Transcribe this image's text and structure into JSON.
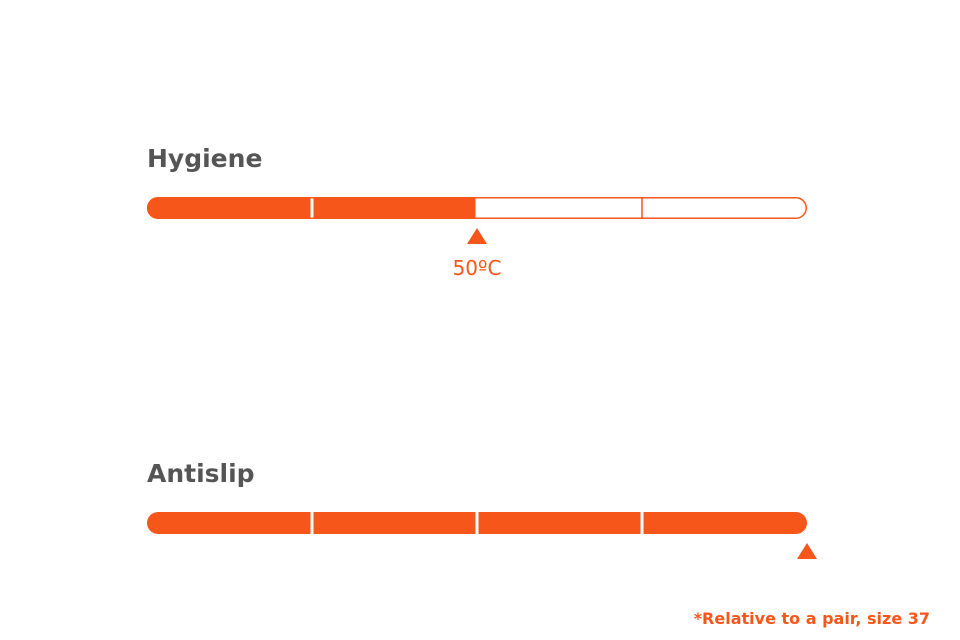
{
  "meters": [
    {
      "label": "Hygiene",
      "segments": 4,
      "filled": 2,
      "marker": "50ºC"
    },
    {
      "label": "Antislip",
      "segments": 4,
      "filled": 4
    }
  ],
  "footnote": "*Relative to a pair, size 37",
  "color": "#f7561b"
}
